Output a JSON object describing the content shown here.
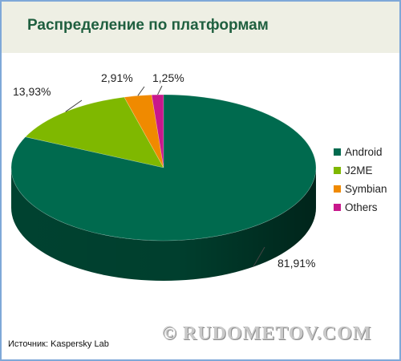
{
  "chart_data": {
    "type": "pie",
    "title": "Распределение по платформам",
    "slices": [
      {
        "name": "Android",
        "value": 81.91,
        "label": "81,91%",
        "color": "#006a4e"
      },
      {
        "name": "J2ME",
        "value": 13.93,
        "label": "13,93%",
        "color": "#7fb800"
      },
      {
        "name": "Symbian",
        "value": 2.91,
        "label": "2,91%",
        "color": "#f08a00"
      },
      {
        "name": "Others",
        "value": 1.25,
        "label": "1,25%",
        "color": "#c8188c"
      }
    ],
    "legend_position": "right",
    "three_d": true
  },
  "source": "Источник: Kaspersky Lab",
  "watermark": "© RUDOMETOV.COM"
}
